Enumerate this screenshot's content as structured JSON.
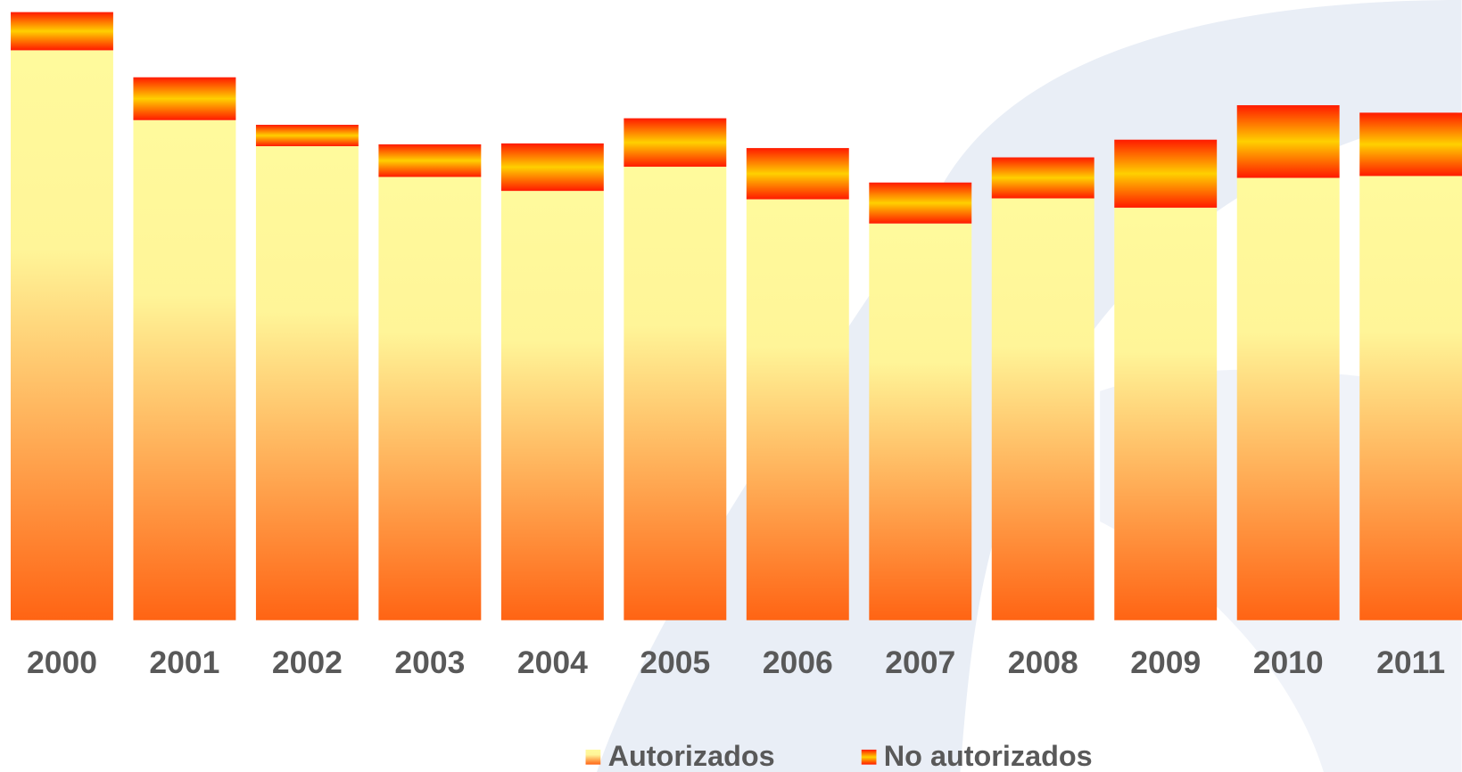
{
  "chart_data": {
    "type": "stacked_bar",
    "categories": [
      "2000",
      "2001",
      "2002",
      "2003",
      "2004",
      "2005",
      "2006",
      "2007",
      "2008",
      "2009",
      "2010",
      "2011"
    ],
    "series": [
      {
        "name": "Autorizados",
        "color": "#ff6414",
        "values": [
          612,
          537,
          509,
          476,
          461,
          487,
          452,
          426,
          453,
          443,
          475,
          477
        ]
      },
      {
        "name": "No autorizados",
        "color": "#ff1a00",
        "values": [
          41,
          46,
          23,
          35,
          51,
          52,
          55,
          44,
          44,
          73,
          78,
          68
        ]
      }
    ],
    "ylim": [
      0,
      653
    ]
  }
}
